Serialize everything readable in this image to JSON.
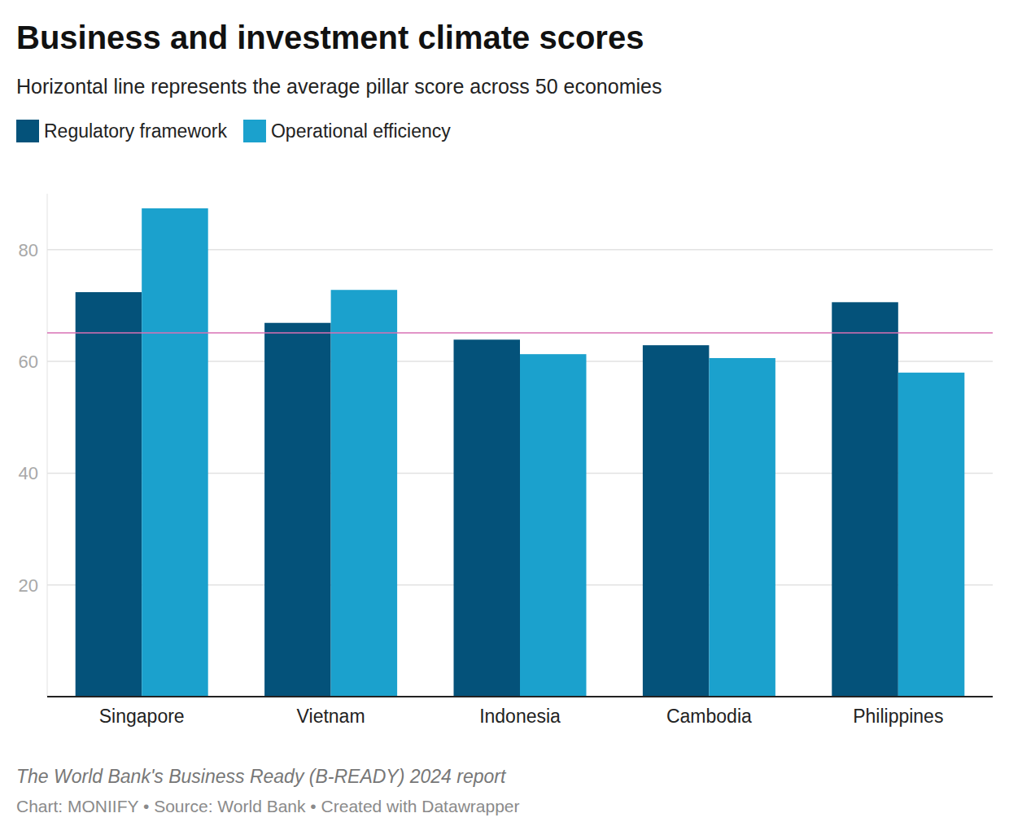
{
  "chart_data": {
    "type": "bar",
    "title": "Business and investment climate scores",
    "subtitle": "Horizontal line represents the average pillar score across 50 economies",
    "categories": [
      "Singapore",
      "Vietnam",
      "Indonesia",
      "Cambodia",
      "Philippines"
    ],
    "series": [
      {
        "name": "Regulatory framework",
        "color": "#04527a",
        "values": [
          72.4,
          66.9,
          63.9,
          62.9,
          70.6
        ]
      },
      {
        "name": "Operational efficiency",
        "color": "#1ba1cd",
        "values": [
          87.4,
          72.8,
          61.3,
          60.6,
          58.0
        ]
      }
    ],
    "average": 65.1,
    "ylim": [
      0,
      90
    ],
    "yticks": [
      20,
      40,
      60,
      80
    ],
    "grid": true,
    "legend": "top-left",
    "notes": [
      "The World Bank's Business Ready (B-READY) 2024 report",
      "Chart: MONIIFY • Source: World Bank • Created with Datawrapper"
    ]
  }
}
